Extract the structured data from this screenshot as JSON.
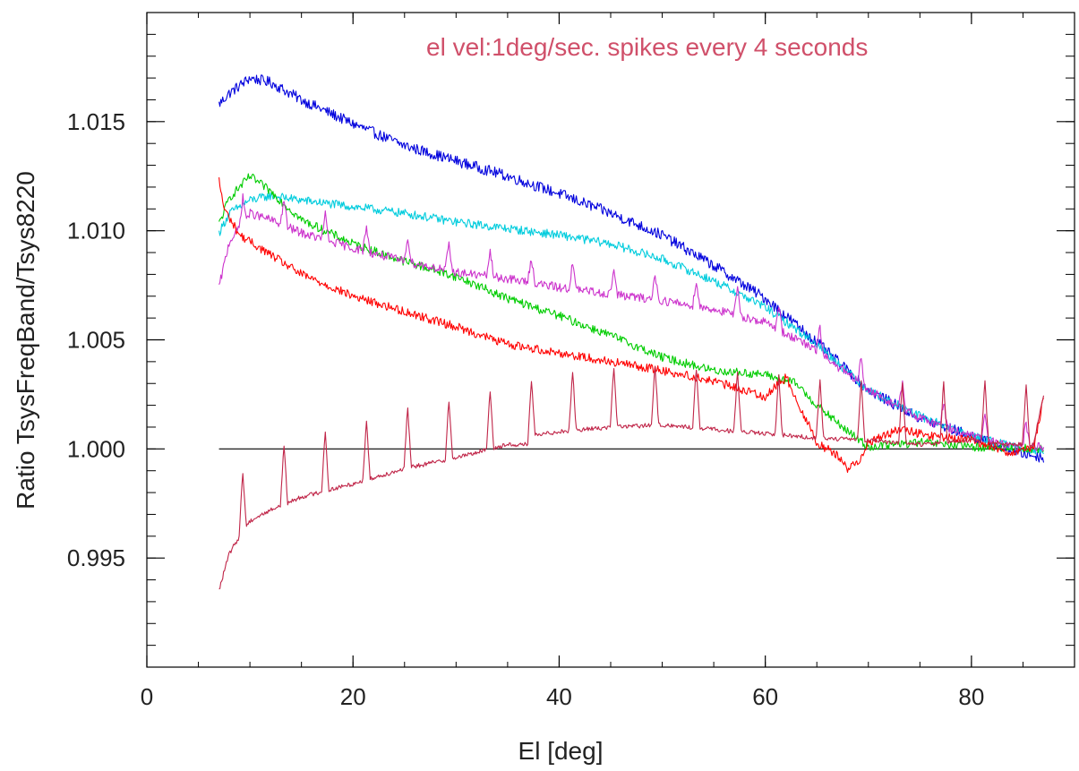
{
  "chart_data": {
    "type": "line",
    "title": "",
    "xlabel": "El [deg]",
    "ylabel": "Ratio TsysFreqBand/Tsys8220",
    "xlim": [
      0,
      90
    ],
    "ylim": [
      0.99,
      1.02
    ],
    "x_ticks": [
      0,
      20,
      40,
      60,
      80
    ],
    "x_tick_labels": [
      "0",
      "20",
      "40",
      "60",
      "80"
    ],
    "y_ticks": [
      0.995,
      1.0,
      1.005,
      1.01,
      1.015
    ],
    "y_tick_labels": [
      "0.995",
      "1.000",
      "1.005",
      "1.010",
      "1.015"
    ],
    "x_minor_step": 5,
    "y_minor_step": 0.001,
    "grid": false,
    "annotation": {
      "text": "el vel:1deg/sec. spikes every 4 seconds",
      "color": "#d0506a"
    },
    "reference_line": {
      "y": 1.0,
      "x_range": [
        7,
        87
      ],
      "color": "#000000"
    },
    "series": [
      {
        "color": "#0000dd",
        "anchors_x": [
          7,
          8,
          10,
          12,
          15,
          20,
          25,
          30,
          35,
          40,
          45,
          50,
          55,
          60,
          65,
          70,
          75,
          80,
          84,
          87
        ],
        "anchors_y": [
          1.0158,
          1.0163,
          1.017,
          1.0168,
          1.016,
          1.0149,
          1.0139,
          1.0132,
          1.0125,
          1.0117,
          1.0108,
          1.0098,
          1.0084,
          1.0069,
          1.0049,
          1.0027,
          1.0014,
          1.0006,
          0.9999,
          0.9996
        ],
        "noise": 0.00025
      },
      {
        "color": "#00ccdd",
        "anchors_x": [
          7,
          8,
          10,
          12,
          15,
          20,
          25,
          30,
          35,
          40,
          45,
          50,
          55,
          60,
          65,
          70,
          75,
          80,
          84,
          87
        ],
        "anchors_y": [
          1.0099,
          1.0108,
          1.0114,
          1.0116,
          1.0114,
          1.0111,
          1.0108,
          1.0104,
          1.0101,
          1.0098,
          1.0094,
          1.0087,
          1.0077,
          1.0065,
          1.0048,
          1.0027,
          1.0015,
          1.0006,
          1.0001,
          0.9999
        ],
        "noise": 0.0002
      },
      {
        "color": "#00cc00",
        "anchors_x": [
          7,
          8,
          10,
          12,
          15,
          20,
          25,
          30,
          35,
          40,
          45,
          50,
          55,
          60,
          63,
          65,
          68,
          70,
          75,
          80,
          87
        ],
        "anchors_y": [
          1.0103,
          1.0115,
          1.0125,
          1.0118,
          1.0105,
          1.0094,
          1.0086,
          1.0079,
          1.0069,
          1.0061,
          1.0052,
          1.0042,
          1.0036,
          1.0034,
          1.003,
          1.002,
          1.0008,
          1.0001,
          1.0003,
          1.0001,
          1.0
        ],
        "noise": 0.0002
      },
      {
        "color": "#cc33cc",
        "anchors_x": [
          7,
          8,
          10,
          12,
          15,
          20,
          25,
          30,
          35,
          40,
          45,
          50,
          55,
          60,
          65,
          70,
          75,
          80,
          84,
          87
        ],
        "anchors_y": [
          1.0074,
          1.0095,
          1.0108,
          1.0105,
          1.0099,
          1.0092,
          1.0086,
          1.0081,
          1.0078,
          1.0074,
          1.0071,
          1.0068,
          1.0064,
          1.0058,
          1.0045,
          1.0027,
          1.0014,
          1.0006,
          1.0001,
          1.0001
        ],
        "noise": 0.0002,
        "spike_start": 9.3,
        "spike_every": 4,
        "spike_height": 0.0012
      },
      {
        "color": "#ff0000",
        "anchors_x": [
          7,
          7.5,
          9,
          12,
          15,
          20,
          25,
          30,
          35,
          40,
          45,
          50,
          55,
          60,
          62,
          65,
          67,
          68,
          69,
          70,
          73,
          76,
          80,
          84,
          86,
          87
        ],
        "anchors_y": [
          1.0123,
          1.011,
          1.0098,
          1.0089,
          1.008,
          1.007,
          1.0063,
          1.0056,
          1.0048,
          1.0044,
          1.004,
          1.0036,
          1.0031,
          1.0024,
          1.0033,
          1.0003,
          0.9997,
          0.9991,
          0.9994,
          1.0003,
          1.0009,
          1.0006,
          1.0004,
          0.9998,
          1.0,
          1.0023
        ],
        "noise": 0.0002
      },
      {
        "color": "#c02548",
        "anchors_x": [
          7,
          7.5,
          8,
          9,
          10,
          12,
          15,
          20,
          25,
          30,
          35,
          37,
          37.5,
          40,
          45,
          50,
          55,
          60,
          65,
          70,
          75,
          80,
          84,
          86,
          87
        ],
        "anchors_y": 0.9935,
        "anchors_y_list": [
          0.9935,
          0.9944,
          0.9952,
          0.996,
          0.9967,
          0.9972,
          0.9978,
          0.9984,
          0.9991,
          0.9996,
          1.0002,
          1.0002,
          1.0006,
          1.0008,
          1.001,
          1.0011,
          1.0009,
          1.0007,
          1.0005,
          1.0004,
          1.0002,
          1.0004,
          1.0002,
          1.0002,
          1.0024
        ],
        "noise": 0.0001,
        "spike_start": 9.3,
        "spike_every": 4,
        "spike_height": 0.0028
      }
    ]
  }
}
